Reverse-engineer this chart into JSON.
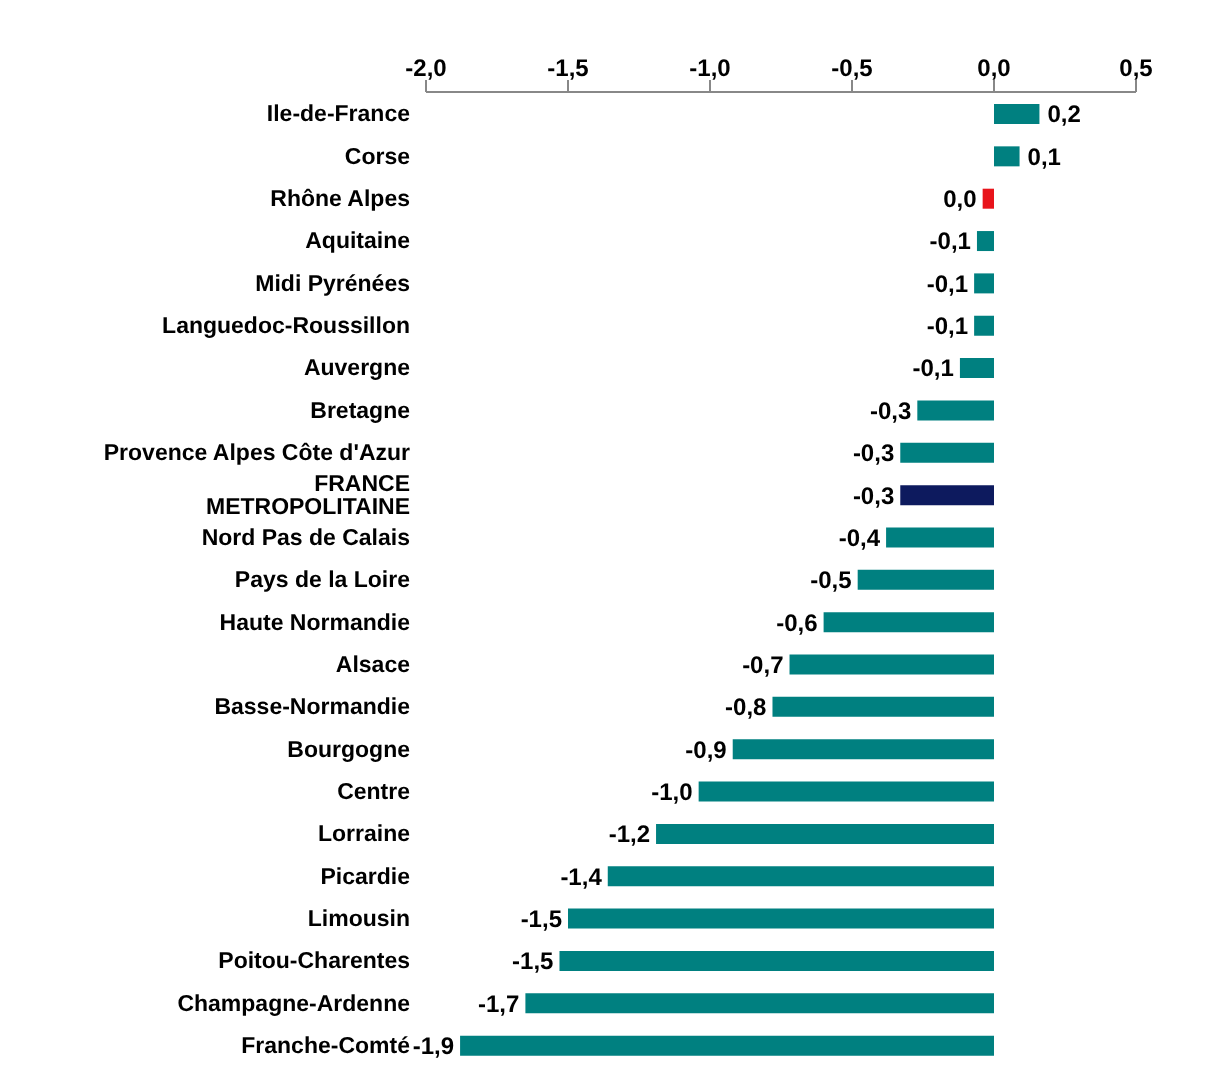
{
  "chart_data": {
    "type": "bar",
    "orientation": "horizontal",
    "categories": [
      "Ile-de-France",
      "Corse",
      "Rhône Alpes",
      "Aquitaine",
      "Midi Pyrénées",
      "Languedoc-Roussillon",
      "Auvergne",
      "Bretagne",
      "Provence Alpes Côte d'Azur",
      "FRANCE METROPOLITAINE",
      "Nord Pas de Calais",
      "Pays de la Loire",
      "Haute Normandie",
      "Alsace",
      "Basse-Normandie",
      "Bourgogne",
      "Centre",
      "Lorraine",
      "Picardie",
      "Limousin",
      "Poitou-Charentes",
      "Champagne-Ardenne",
      "Franche-Comté"
    ],
    "values": [
      0.16,
      0.09,
      -0.04,
      -0.06,
      -0.07,
      -0.07,
      -0.12,
      -0.27,
      -0.33,
      -0.33,
      -0.38,
      -0.48,
      -0.6,
      -0.72,
      -0.78,
      -0.92,
      -1.04,
      -1.19,
      -1.36,
      -1.5,
      -1.53,
      -1.65,
      -1.88
    ],
    "value_labels": [
      "0,2",
      "0,1",
      "0,0",
      "-0,1",
      "-0,1",
      "-0,1",
      "-0,1",
      "-0,3",
      "-0,3",
      "-0,3",
      "-0,4",
      "-0,5",
      "-0,6",
      "-0,7",
      "-0,8",
      "-0,9",
      "-1,0",
      "-1,2",
      "-1,4",
      "-1,5",
      "-1,5",
      "-1,7",
      "-1,9"
    ],
    "colors": [
      "#008080",
      "#008080",
      "#e8141b",
      "#008080",
      "#008080",
      "#008080",
      "#008080",
      "#008080",
      "#008080",
      "#0d1a5e",
      "#008080",
      "#008080",
      "#008080",
      "#008080",
      "#008080",
      "#008080",
      "#008080",
      "#008080",
      "#008080",
      "#008080",
      "#008080",
      "#008080",
      "#008080"
    ],
    "xlim": [
      -2,
      0.5
    ],
    "xticks": [
      {
        "value": -2,
        "label": "-2,0"
      },
      {
        "value": -1.5,
        "label": "-1,5"
      },
      {
        "value": -1,
        "label": "-1,0"
      },
      {
        "value": -0.5,
        "label": "-0,5"
      },
      {
        "value": 0,
        "label": "0,0"
      },
      {
        "value": 0.5,
        "label": "0,5"
      }
    ],
    "grid": false,
    "legend": false
  }
}
